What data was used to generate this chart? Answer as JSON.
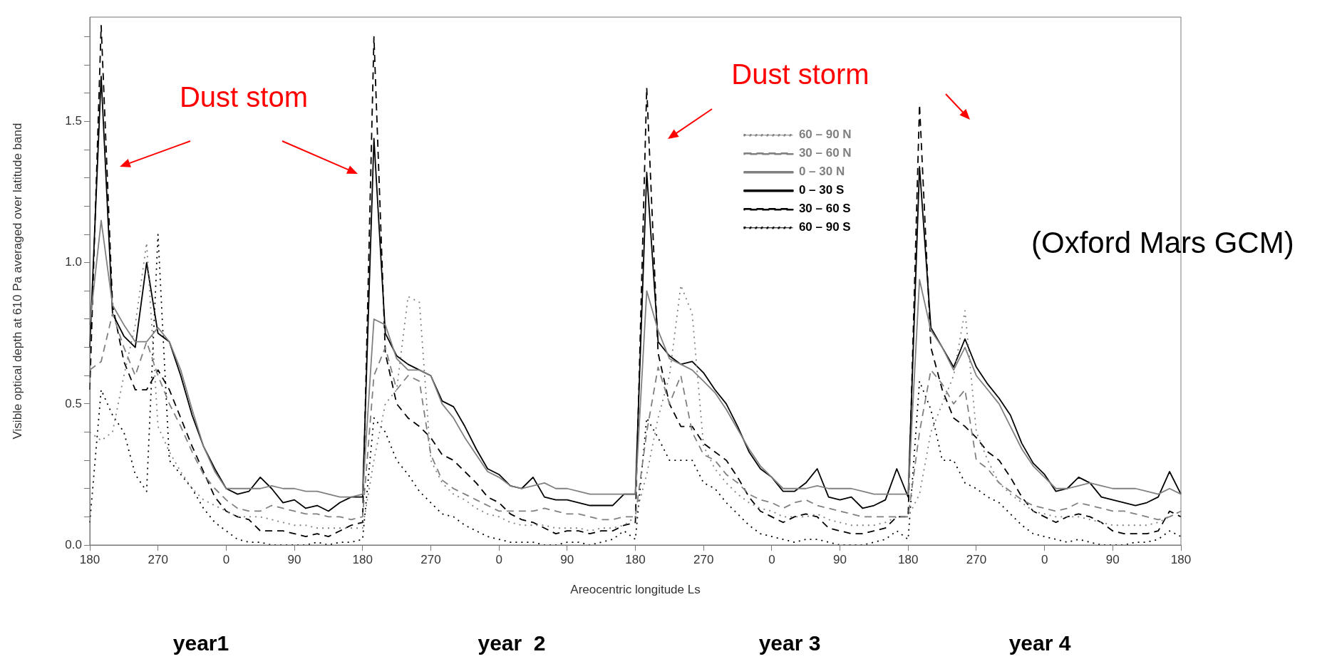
{
  "chart_data": {
    "type": "line",
    "xlabel": "Areocentric longitude Ls",
    "ylabel": "Visible optical depth at 610 Pa averaged over latitude band",
    "categories": [
      "180",
      null,
      null,
      null,
      null,
      null,
      "270",
      null,
      null,
      null,
      null,
      null,
      "0",
      null,
      null,
      null,
      null,
      null,
      "90",
      null,
      null,
      null,
      null,
      null,
      "180",
      null,
      null,
      null,
      null,
      null,
      "270",
      null,
      null,
      null,
      null,
      null,
      "0",
      null,
      null,
      null,
      null,
      null,
      "90",
      null,
      null,
      null,
      null,
      null,
      "180",
      null,
      null,
      null,
      null,
      null,
      "270",
      null,
      null,
      null,
      null,
      null,
      "0",
      null,
      null,
      null,
      null,
      null,
      "90",
      null,
      null,
      null,
      null,
      null,
      "180",
      null,
      null,
      null,
      null,
      null,
      "270",
      null,
      null,
      null,
      null,
      null,
      "0",
      null,
      null,
      null,
      null,
      null,
      "90",
      null,
      null,
      null,
      null,
      null,
      "180"
    ],
    "series": [
      {
        "name": "60 – 90 N",
        "color": "#808080",
        "line_style": "dotted",
        "values": [
          0.4,
          0.37,
          0.4,
          0.6,
          0.78,
          1.07,
          0.42,
          0.33,
          0.26,
          0.2,
          0.16,
          0.14,
          0.12,
          0.1,
          0.1,
          0.1,
          0.09,
          0.08,
          0.07,
          0.07,
          0.06,
          0.06,
          0.06,
          0.06,
          0.06,
          0.3,
          0.5,
          0.55,
          0.88,
          0.86,
          0.3,
          0.22,
          0.18,
          0.16,
          0.13,
          0.11,
          0.1,
          0.08,
          0.07,
          0.07,
          0.07,
          0.06,
          0.06,
          0.06,
          0.05,
          0.06,
          0.06,
          0.07,
          0.1,
          0.25,
          0.45,
          0.6,
          0.92,
          0.82,
          0.35,
          0.27,
          0.22,
          0.18,
          0.15,
          0.13,
          0.12,
          0.1,
          0.1,
          0.1,
          0.11,
          0.09,
          0.08,
          0.07,
          0.07,
          0.07,
          0.08,
          0.1,
          0.1,
          0.18,
          0.4,
          0.5,
          0.6,
          0.83,
          0.4,
          0.3,
          0.22,
          0.18,
          0.15,
          0.12,
          0.11,
          0.1,
          0.1,
          0.1,
          0.09,
          0.08,
          0.07,
          0.07,
          0.07,
          0.07,
          0.08,
          0.1,
          0.12
        ]
      },
      {
        "name": "30 – 60 N",
        "color": "#808080",
        "line_style": "dashed",
        "values": [
          0.62,
          0.65,
          0.82,
          0.7,
          0.6,
          0.72,
          0.6,
          0.5,
          0.42,
          0.33,
          0.25,
          0.2,
          0.16,
          0.13,
          0.12,
          0.12,
          0.14,
          0.13,
          0.12,
          0.11,
          0.11,
          0.1,
          0.1,
          0.09,
          0.1,
          0.6,
          0.7,
          0.55,
          0.6,
          0.58,
          0.32,
          0.23,
          0.2,
          0.18,
          0.16,
          0.14,
          0.12,
          0.12,
          0.12,
          0.12,
          0.13,
          0.12,
          0.11,
          0.11,
          0.1,
          0.09,
          0.09,
          0.1,
          0.1,
          0.4,
          0.63,
          0.5,
          0.6,
          0.4,
          0.32,
          0.3,
          0.25,
          0.22,
          0.18,
          0.16,
          0.15,
          0.13,
          0.15,
          0.16,
          0.14,
          0.13,
          0.12,
          0.11,
          0.1,
          0.1,
          0.1,
          0.1,
          0.1,
          0.4,
          0.62,
          0.57,
          0.5,
          0.55,
          0.3,
          0.27,
          0.22,
          0.19,
          0.16,
          0.14,
          0.13,
          0.12,
          0.13,
          0.15,
          0.14,
          0.13,
          0.12,
          0.12,
          0.11,
          0.1,
          0.09,
          0.1,
          0.12
        ]
      },
      {
        "name": "0 – 30 N",
        "color": "#808080",
        "line_style": "solid",
        "values": [
          0.78,
          1.15,
          0.85,
          0.78,
          0.72,
          0.72,
          0.77,
          0.72,
          0.62,
          0.48,
          0.35,
          0.26,
          0.2,
          0.2,
          0.2,
          0.2,
          0.21,
          0.2,
          0.2,
          0.19,
          0.19,
          0.18,
          0.17,
          0.17,
          0.18,
          0.8,
          0.78,
          0.66,
          0.62,
          0.62,
          0.6,
          0.5,
          0.45,
          0.38,
          0.32,
          0.26,
          0.24,
          0.21,
          0.2,
          0.21,
          0.22,
          0.2,
          0.2,
          0.19,
          0.18,
          0.18,
          0.18,
          0.18,
          0.18,
          0.9,
          0.76,
          0.66,
          0.64,
          0.62,
          0.58,
          0.54,
          0.48,
          0.41,
          0.34,
          0.28,
          0.24,
          0.2,
          0.2,
          0.2,
          0.21,
          0.2,
          0.2,
          0.2,
          0.19,
          0.18,
          0.18,
          0.18,
          0.18,
          0.94,
          0.76,
          0.7,
          0.62,
          0.7,
          0.6,
          0.55,
          0.5,
          0.42,
          0.34,
          0.28,
          0.24,
          0.2,
          0.2,
          0.21,
          0.22,
          0.21,
          0.2,
          0.2,
          0.2,
          0.19,
          0.18,
          0.2,
          0.18
        ]
      },
      {
        "name": "0 – 30 S",
        "color": "#000000",
        "line_style": "solid",
        "values": [
          0.7,
          1.66,
          0.82,
          0.74,
          0.7,
          1.0,
          0.75,
          0.72,
          0.6,
          0.46,
          0.35,
          0.27,
          0.2,
          0.18,
          0.19,
          0.24,
          0.2,
          0.15,
          0.16,
          0.13,
          0.14,
          0.12,
          0.15,
          0.17,
          0.17,
          1.44,
          0.75,
          0.67,
          0.64,
          0.62,
          0.6,
          0.51,
          0.49,
          0.42,
          0.34,
          0.27,
          0.25,
          0.21,
          0.2,
          0.24,
          0.17,
          0.16,
          0.16,
          0.15,
          0.14,
          0.14,
          0.14,
          0.18,
          0.18,
          1.32,
          0.72,
          0.67,
          0.64,
          0.65,
          0.61,
          0.55,
          0.5,
          0.42,
          0.33,
          0.27,
          0.24,
          0.19,
          0.19,
          0.22,
          0.27,
          0.17,
          0.16,
          0.17,
          0.13,
          0.14,
          0.16,
          0.27,
          0.17,
          1.34,
          0.77,
          0.7,
          0.63,
          0.73,
          0.63,
          0.57,
          0.52,
          0.46,
          0.36,
          0.29,
          0.25,
          0.19,
          0.2,
          0.24,
          0.22,
          0.17,
          0.16,
          0.15,
          0.14,
          0.15,
          0.17,
          0.26,
          0.18
        ]
      },
      {
        "name": "30 – 60 S",
        "color": "#000000",
        "line_style": "dashed",
        "values": [
          0.55,
          1.84,
          0.85,
          0.65,
          0.55,
          0.55,
          0.62,
          0.55,
          0.45,
          0.35,
          0.26,
          0.17,
          0.12,
          0.1,
          0.09,
          0.05,
          0.05,
          0.05,
          0.04,
          0.03,
          0.04,
          0.03,
          0.05,
          0.07,
          0.08,
          1.8,
          0.68,
          0.5,
          0.45,
          0.42,
          0.38,
          0.32,
          0.3,
          0.26,
          0.22,
          0.17,
          0.15,
          0.11,
          0.09,
          0.08,
          0.06,
          0.04,
          0.05,
          0.05,
          0.04,
          0.05,
          0.05,
          0.07,
          0.08,
          1.62,
          0.68,
          0.5,
          0.42,
          0.42,
          0.36,
          0.33,
          0.3,
          0.24,
          0.17,
          0.12,
          0.1,
          0.08,
          0.1,
          0.11,
          0.1,
          0.06,
          0.05,
          0.04,
          0.04,
          0.05,
          0.06,
          0.1,
          0.1,
          1.56,
          0.7,
          0.55,
          0.45,
          0.42,
          0.38,
          0.33,
          0.3,
          0.24,
          0.17,
          0.12,
          0.1,
          0.08,
          0.1,
          0.11,
          0.1,
          0.08,
          0.05,
          0.04,
          0.04,
          0.04,
          0.05,
          0.12,
          0.1
        ]
      },
      {
        "name": "60 – 90 S",
        "color": "#000000",
        "line_style": "dotted",
        "values": [
          0.08,
          0.55,
          0.46,
          0.4,
          0.25,
          0.19,
          1.1,
          0.3,
          0.25,
          0.2,
          0.13,
          0.08,
          0.05,
          0.02,
          0.01,
          0.01,
          0.0,
          0.0,
          0.0,
          0.0,
          0.01,
          0.0,
          0.01,
          0.01,
          0.02,
          0.45,
          0.4,
          0.3,
          0.25,
          0.19,
          0.15,
          0.11,
          0.1,
          0.07,
          0.05,
          0.03,
          0.02,
          0.01,
          0.01,
          0.01,
          0.0,
          0.0,
          0.01,
          0.01,
          0.0,
          0.01,
          0.02,
          0.05,
          0.02,
          0.45,
          0.38,
          0.3,
          0.3,
          0.3,
          0.22,
          0.2,
          0.15,
          0.11,
          0.07,
          0.04,
          0.03,
          0.02,
          0.01,
          0.02,
          0.02,
          0.01,
          0.0,
          0.0,
          0.0,
          0.01,
          0.02,
          0.05,
          0.02,
          0.58,
          0.48,
          0.3,
          0.3,
          0.22,
          0.2,
          0.17,
          0.15,
          0.11,
          0.07,
          0.04,
          0.03,
          0.02,
          0.01,
          0.02,
          0.01,
          0.0,
          0.0,
          0.0,
          0.01,
          0.01,
          0.02,
          0.05,
          0.03
        ]
      }
    ],
    "ylim": [
      0,
      1.87
    ],
    "yticks": [
      {
        "value": 0,
        "label": "0.0"
      },
      {
        "value": 0.1,
        "label": null
      },
      {
        "value": 0.2,
        "label": null
      },
      {
        "value": 0.3,
        "label": null
      },
      {
        "value": 0.4,
        "label": null
      },
      {
        "value": 0.5,
        "label": "0.5"
      },
      {
        "value": 0.6,
        "label": null
      },
      {
        "value": 0.7,
        "label": null
      },
      {
        "value": 0.8,
        "label": null
      },
      {
        "value": 0.9,
        "label": null
      },
      {
        "value": 1,
        "label": "1.0"
      },
      {
        "value": 1.1,
        "label": null
      },
      {
        "value": 1.2,
        "label": null
      },
      {
        "value": 1.3,
        "label": null
      },
      {
        "value": 1.4,
        "label": null
      },
      {
        "value": 1.5,
        "label": "1.5"
      },
      {
        "value": 1.6,
        "label": null
      },
      {
        "value": 1.7,
        "label": null
      },
      {
        "value": 1.8,
        "label": null
      }
    ],
    "legend": "top",
    "annotations": [
      "Dust stom",
      "Dust storm",
      "(Oxford Mars GCM)",
      "year1",
      "year  2",
      "year 3",
      "year 4"
    ]
  }
}
